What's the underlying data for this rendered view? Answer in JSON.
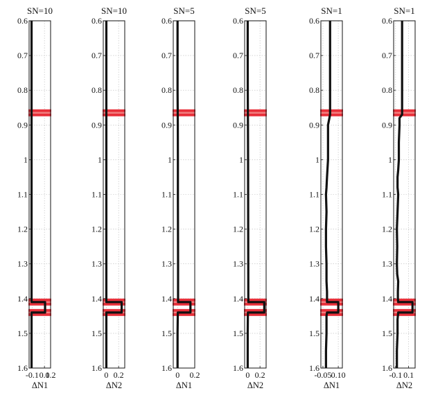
{
  "chart_data": [
    {
      "type": "line",
      "title": "SN=10",
      "xlabel": "ΔN1",
      "xlim": [
        -0.15,
        0.2
      ],
      "xticks": [
        -0.1,
        0.1,
        0.2
      ],
      "xtick_labels": [
        "-0.1",
        "0.1",
        "0.2"
      ],
      "ylim": [
        0.6,
        1.6
      ],
      "yticks": [
        0.6,
        0.7,
        0.8,
        0.9,
        1.0,
        1.1,
        1.2,
        1.3,
        1.4,
        1.5,
        1.6
      ],
      "ytick_labels": [
        "0.6",
        "0.7",
        "0.8",
        "0.9",
        "1",
        "1.1",
        "1.2",
        "1.3",
        "1.4",
        "1.5",
        "1.6"
      ],
      "y_axis_reversed": true,
      "grid": true,
      "series": [
        {
          "x": [
            -0.11,
            -0.11,
            -0.11,
            -0.11,
            -0.11,
            -0.11,
            -0.11,
            -0.11,
            -0.11,
            -0.11,
            0.11,
            0.11,
            -0.11,
            -0.11,
            -0.11,
            -0.11
          ],
          "y": [
            0.6,
            0.7,
            0.8,
            0.9,
            1.0,
            1.1,
            1.2,
            1.3,
            1.4,
            1.41,
            1.41,
            1.44,
            1.44,
            1.5,
            1.55,
            1.6
          ]
        }
      ],
      "highlight_bands": [
        0.865,
        1.41,
        1.44
      ],
      "colors": {
        "line": "#111111",
        "band": "#e8303a",
        "band_core": "#f08080",
        "grid": "#bbbbbb"
      }
    },
    {
      "type": "line",
      "title": "SN=10",
      "xlabel": "ΔN2",
      "xlim": [
        -0.05,
        0.3
      ],
      "xticks": [
        0,
        0.2
      ],
      "xtick_labels": [
        "0",
        "0.2"
      ],
      "ylim": [
        0.6,
        1.6
      ],
      "yticks": [
        0.6,
        0.7,
        0.8,
        0.9,
        1.0,
        1.1,
        1.2,
        1.3,
        1.4,
        1.5,
        1.6
      ],
      "ytick_labels": [
        "0.6",
        "0.7",
        "0.8",
        "0.9",
        "1",
        "1.1",
        "1.2",
        "1.3",
        "1.4",
        "1.5",
        "1.6"
      ],
      "y_axis_reversed": true,
      "grid": true,
      "series": [
        {
          "x": [
            0.0,
            0.0,
            0.0,
            0.0,
            0.0,
            0.0,
            0.0,
            0.0,
            0.0,
            0.0,
            0.25,
            0.25,
            0.0,
            0.0,
            0.0
          ],
          "y": [
            0.6,
            0.7,
            0.8,
            0.9,
            1.0,
            1.1,
            1.2,
            1.3,
            1.4,
            1.41,
            1.41,
            1.44,
            1.44,
            1.5,
            1.6
          ]
        }
      ],
      "highlight_bands": [
        0.865,
        1.41,
        1.44
      ],
      "colors": {
        "line": "#111111",
        "band": "#e8303a",
        "band_core": "#f08080",
        "grid": "#bbbbbb"
      }
    },
    {
      "type": "line",
      "title": "SN=5",
      "xlabel": "ΔN1",
      "xlim": [
        -0.05,
        0.2
      ],
      "xticks": [
        0,
        0.2
      ],
      "xtick_labels": [
        "0",
        "0.2"
      ],
      "ylim": [
        0.6,
        1.6
      ],
      "yticks": [
        0.6,
        0.7,
        0.8,
        0.9,
        1.0,
        1.1,
        1.2,
        1.3,
        1.4,
        1.5,
        1.6
      ],
      "ytick_labels": [
        "0.6",
        "0.7",
        "0.8",
        "0.9",
        "1",
        "1.1",
        "1.2",
        "1.3",
        "1.4",
        "1.5",
        "1.6"
      ],
      "y_axis_reversed": true,
      "grid": true,
      "series": [
        {
          "x": [
            0.0,
            0.0,
            0.0,
            0.003,
            0.004,
            0.004,
            0.005,
            0.006,
            0.006,
            0.006,
            0.15,
            0.15,
            0.003,
            0.0,
            0.0
          ],
          "y": [
            0.6,
            0.7,
            0.8,
            0.9,
            1.0,
            1.1,
            1.2,
            1.3,
            1.4,
            1.41,
            1.41,
            1.44,
            1.44,
            1.5,
            1.6
          ]
        }
      ],
      "highlight_bands": [
        0.865,
        1.41,
        1.44
      ],
      "colors": {
        "line": "#111111",
        "band": "#e8303a",
        "band_core": "#f08080",
        "grid": "#bbbbbb"
      }
    },
    {
      "type": "line",
      "title": "SN=5",
      "xlabel": "ΔN2",
      "xlim": [
        -0.05,
        0.3
      ],
      "xticks": [
        0,
        0.2
      ],
      "xtick_labels": [
        "0",
        "0.2"
      ],
      "ylim": [
        0.6,
        1.6
      ],
      "yticks": [
        0.6,
        0.7,
        0.8,
        0.9,
        1.0,
        1.1,
        1.2,
        1.3,
        1.4,
        1.5,
        1.6
      ],
      "ytick_labels": [
        "0.6",
        "0.7",
        "0.8",
        "0.9",
        "1",
        "1.1",
        "1.2",
        "1.3",
        "1.4",
        "1.5",
        "1.6"
      ],
      "y_axis_reversed": true,
      "grid": true,
      "series": [
        {
          "x": [
            0.0,
            0.0,
            0.001,
            0.004,
            0.006,
            0.007,
            0.008,
            0.009,
            0.01,
            0.01,
            0.27,
            0.27,
            0.003,
            0.0,
            0.0
          ],
          "y": [
            0.6,
            0.7,
            0.8,
            0.9,
            1.0,
            1.1,
            1.2,
            1.3,
            1.4,
            1.41,
            1.41,
            1.44,
            1.44,
            1.5,
            1.6
          ]
        }
      ],
      "highlight_bands": [
        0.865,
        1.41,
        1.44
      ],
      "colors": {
        "line": "#111111",
        "band": "#e8303a",
        "band_core": "#f08080",
        "grid": "#bbbbbb"
      }
    },
    {
      "type": "line",
      "title": "SN=1",
      "xlabel": "ΔN1",
      "xlim": [
        -0.07,
        0.14
      ],
      "xticks": [
        -0.05,
        0.1
      ],
      "xtick_labels": [
        "-0.05",
        "0.10"
      ],
      "ylim": [
        0.6,
        1.6
      ],
      "yticks": [
        0.6,
        0.7,
        0.8,
        0.9,
        1.0,
        1.1,
        1.2,
        1.3,
        1.4,
        1.5,
        1.6
      ],
      "ytick_labels": [
        "0.6",
        "0.7",
        "0.8",
        "0.9",
        "1",
        "1.1",
        "1.2",
        "1.3",
        "1.4",
        "1.5",
        "1.6"
      ],
      "y_axis_reversed": true,
      "grid": true,
      "series": [
        {
          "x": [
            0.02,
            0.02,
            0.02,
            0.02,
            0.02,
            0.0,
            0.0,
            -0.01,
            -0.015,
            -0.02,
            -0.015,
            -0.02,
            -0.02,
            -0.015,
            -0.015,
            -0.01,
            -0.01,
            -0.01,
            0.1,
            0.1,
            -0.01,
            -0.015,
            -0.015,
            -0.02,
            -0.02
          ],
          "y": [
            0.6,
            0.7,
            0.8,
            0.86,
            0.87,
            0.9,
            1.0,
            1.05,
            1.08,
            1.1,
            1.15,
            1.2,
            1.25,
            1.3,
            1.35,
            1.38,
            1.4,
            1.41,
            1.41,
            1.44,
            1.44,
            1.45,
            1.5,
            1.55,
            1.6
          ]
        }
      ],
      "highlight_bands": [
        0.865,
        1.41,
        1.44
      ],
      "colors": {
        "line": "#111111",
        "band": "#e8303a",
        "band_core": "#f08080",
        "grid": "#bbbbbb"
      }
    },
    {
      "type": "line",
      "title": "SN=1",
      "xlabel": "ΔN2",
      "xlim": [
        -0.13,
        0.2
      ],
      "xticks": [
        -0.1,
        0.1
      ],
      "xtick_labels": [
        "-0.1",
        "0.1"
      ],
      "ylim": [
        0.6,
        1.6
      ],
      "yticks": [
        0.6,
        0.7,
        0.8,
        0.9,
        1.0,
        1.1,
        1.2,
        1.3,
        1.4,
        1.5,
        1.6
      ],
      "ytick_labels": [
        "0.6",
        "0.7",
        "0.8",
        "0.9",
        "1",
        "1.1",
        "1.2",
        "1.3",
        "1.4",
        "1.5",
        "1.6"
      ],
      "y_axis_reversed": true,
      "grid": true,
      "series": [
        {
          "x": [
            0.0,
            0.0,
            0.0,
            0.0,
            0.0,
            -0.04,
            -0.04,
            -0.05,
            -0.05,
            -0.06,
            -0.07,
            -0.07,
            -0.06,
            -0.07,
            -0.08,
            -0.075,
            -0.08,
            -0.075,
            -0.06,
            -0.065,
            -0.065,
            -0.06,
            0.16,
            0.16,
            -0.06,
            -0.07,
            -0.07,
            -0.08,
            -0.08
          ],
          "y": [
            0.6,
            0.7,
            0.8,
            0.86,
            0.87,
            0.88,
            0.9,
            0.95,
            1.0,
            1.03,
            1.05,
            1.08,
            1.1,
            1.15,
            1.2,
            1.25,
            1.3,
            1.33,
            1.35,
            1.38,
            1.4,
            1.41,
            1.41,
            1.44,
            1.44,
            1.46,
            1.5,
            1.55,
            1.6
          ]
        }
      ],
      "highlight_bands": [
        0.865,
        1.41,
        1.44
      ],
      "colors": {
        "line": "#111111",
        "band": "#e8303a",
        "band_core": "#f08080",
        "grid": "#bbbbbb"
      }
    }
  ]
}
